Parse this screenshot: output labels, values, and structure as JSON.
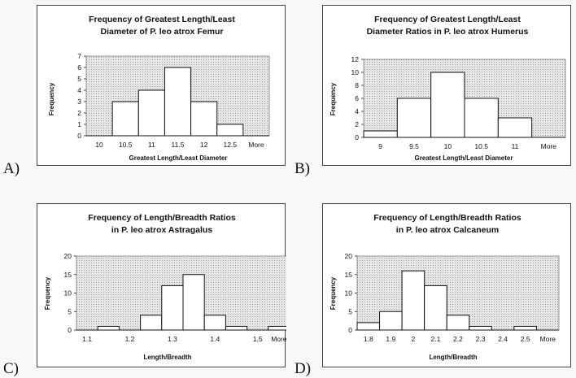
{
  "panel_labels": [
    "A)",
    "B)",
    "C)",
    "D)"
  ],
  "chart_data": [
    {
      "type": "bar",
      "title_lines": [
        "Frequency of Greatest Length/Least",
        "Diameter of P. leo atrox Femur"
      ],
      "xlabel": "Greatest Length/Least Diameter",
      "ylabel": "Frequency",
      "categories": [
        "10",
        "10.5",
        "11",
        "11.5",
        "12",
        "12.5",
        "More"
      ],
      "values": [
        0,
        3,
        4,
        6,
        3,
        1,
        0
      ],
      "yticks": [
        0,
        1,
        2,
        3,
        4,
        5,
        6,
        7
      ],
      "ylim": [
        0,
        7
      ]
    },
    {
      "type": "bar",
      "title_lines": [
        "Frequency of Greatest Length/Least",
        "Diameter Ratios in P. leo atrox Humerus"
      ],
      "xlabel": "Greatest Length/Least Diameter",
      "ylabel": "Frequency",
      "categories": [
        "9",
        "9.5",
        "10",
        "10.5",
        "11",
        "More"
      ],
      "values": [
        1,
        6,
        10,
        6,
        3,
        0
      ],
      "yticks": [
        0,
        2,
        4,
        6,
        8,
        10,
        12
      ],
      "ylim": [
        0,
        12
      ]
    },
    {
      "type": "bar",
      "title_lines": [
        "Frequency of Length/Breadth Ratios",
        "in P. leo atrox Astragalus"
      ],
      "xlabel": "Length/Breadth",
      "ylabel": "Frequency",
      "categories": [
        "1.1",
        "1.15",
        "1.2",
        "1.25",
        "1.3",
        "1.35",
        "1.4",
        "1.45",
        "1.5",
        "More"
      ],
      "tick_labels": [
        "1.1",
        "",
        "1.2",
        "",
        "1.3",
        "",
        "1.4",
        "",
        "1.5",
        "More"
      ],
      "values": [
        0,
        1,
        0,
        4,
        12,
        15,
        4,
        1,
        0,
        1
      ],
      "yticks": [
        0,
        5,
        10,
        15,
        20
      ],
      "ylim": [
        0,
        20
      ]
    },
    {
      "type": "bar",
      "title_lines": [
        "Frequency of Length/Breadth Ratios",
        "in P. leo atrox Calcaneum"
      ],
      "xlabel": "Length/Breadth",
      "ylabel": "Frequency",
      "categories": [
        "1.8",
        "1.9",
        "2",
        "2.1",
        "2.2",
        "2.3",
        "2.4",
        "2.5",
        "More"
      ],
      "values": [
        2,
        5,
        16,
        12,
        4,
        1,
        0,
        1,
        0
      ],
      "yticks": [
        0,
        5,
        10,
        15,
        20
      ],
      "ylim": [
        0,
        20
      ]
    }
  ]
}
